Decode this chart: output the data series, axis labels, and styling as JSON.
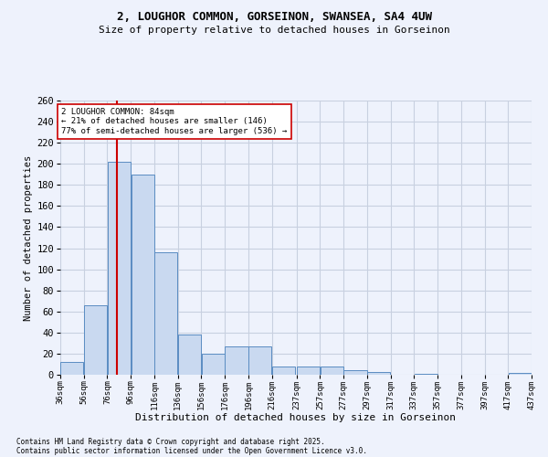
{
  "title_line1": "2, LOUGHOR COMMON, GORSEINON, SWANSEA, SA4 4UW",
  "title_line2": "Size of property relative to detached houses in Gorseinon",
  "xlabel": "Distribution of detached houses by size in Gorseinon",
  "ylabel": "Number of detached properties",
  "footnote1": "Contains HM Land Registry data © Crown copyright and database right 2025.",
  "footnote2": "Contains public sector information licensed under the Open Government Licence v3.0.",
  "bar_color": "#c9d9f0",
  "bar_edge_color": "#5a8cc2",
  "grid_color": "#c8d0e0",
  "background_color": "#eef2fc",
  "vline_color": "#cc0000",
  "vline_x": 84,
  "annotation_text": "2 LOUGHOR COMMON: 84sqm\n← 21% of detached houses are smaller (146)\n77% of semi-detached houses are larger (536) →",
  "annotation_box_color": "#ffffff",
  "annotation_box_edge": "#cc0000",
  "bins": [
    36,
    56,
    76,
    96,
    116,
    136,
    156,
    176,
    196,
    216,
    237,
    257,
    277,
    297,
    317,
    337,
    357,
    377,
    397,
    417,
    437
  ],
  "values": [
    12,
    66,
    202,
    190,
    116,
    38,
    20,
    27,
    27,
    8,
    8,
    8,
    4,
    3,
    0,
    1,
    0,
    0,
    0,
    2
  ],
  "ylim": [
    0,
    260
  ],
  "yticks": [
    0,
    20,
    40,
    60,
    80,
    100,
    120,
    140,
    160,
    180,
    200,
    220,
    240,
    260
  ]
}
